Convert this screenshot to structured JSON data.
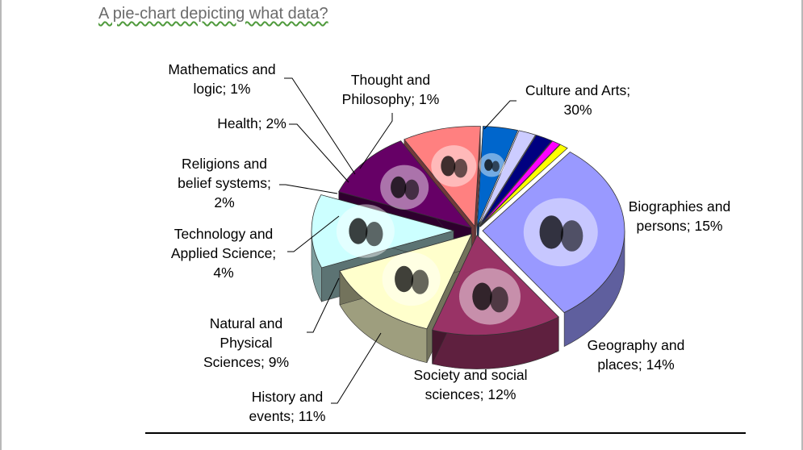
{
  "page": {
    "title": "A pie-chart depicting what data?"
  },
  "chart_data": {
    "type": "pie",
    "style": "3d-exploded-pie-with-pictograms",
    "legend": "none",
    "slices": [
      {
        "label": "Culture and Arts",
        "value": 30,
        "color": "#9999ff",
        "display_lines": [
          "Culture and Arts;",
          "30%"
        ],
        "icon": "theater-masks-icon"
      },
      {
        "label": "Biographies and persons",
        "value": 15,
        "color": "#993366",
        "display_lines": [
          "Biographies and",
          "persons; 15%"
        ],
        "icon": "head-profile-icon"
      },
      {
        "label": "Geography and places",
        "value": 14,
        "color": "#ffffcc",
        "display_lines": [
          "Geography and",
          "places; 14%"
        ],
        "icon": "world-map-icon"
      },
      {
        "label": "Society and social sciences",
        "value": 12,
        "color": "#ccffff",
        "display_lines": [
          "Society and social",
          "sciences; 12%"
        ],
        "icon": "family-icon"
      },
      {
        "label": "History and events",
        "value": 11,
        "color": "#660066",
        "display_lines": [
          "History and",
          "events; 11%"
        ],
        "icon": "hourglass-icon"
      },
      {
        "label": "Natural and Physical Sciences",
        "value": 9,
        "color": "#ff8080",
        "display_lines": [
          "Natural and",
          "Physical",
          "Sciences; 9%"
        ],
        "icon": "atom-icon"
      },
      {
        "label": "Technology and Applied Science",
        "value": 4,
        "color": "#0066cc",
        "display_lines": [
          "Technology and",
          "Applied Science;",
          "4%"
        ],
        "icon": "gears-icon"
      },
      {
        "label": "Religions and belief systems",
        "value": 2,
        "color": "#ccccff",
        "display_lines": [
          "Religions and",
          "belief systems;",
          "2%"
        ]
      },
      {
        "label": "Health",
        "value": 2,
        "color": "#000080",
        "display_lines": [
          "Health; 2%"
        ]
      },
      {
        "label": "Mathematics and logic",
        "value": 1,
        "color": "#ff00ff",
        "display_lines": [
          "Mathematics and",
          "logic; 1%"
        ]
      },
      {
        "label": "Thought and Philosophy",
        "value": 1,
        "color": "#ffff00",
        "display_lines": [
          "Thought and",
          "Philosophy; 1%"
        ]
      }
    ]
  }
}
